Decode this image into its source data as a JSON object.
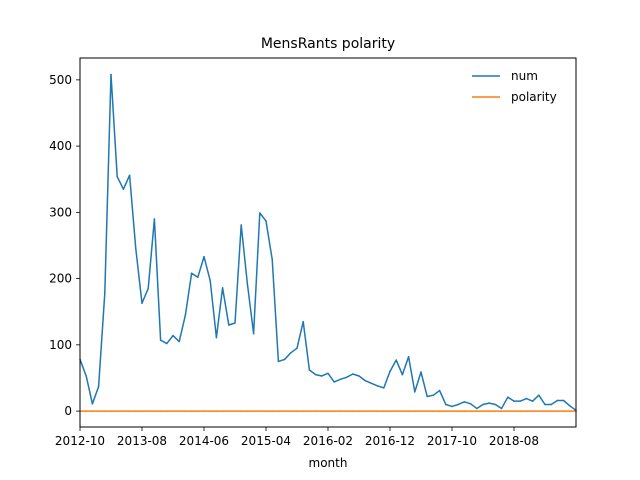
{
  "chart_data": {
    "type": "line",
    "title": "MensRants polarity",
    "xlabel": "month",
    "ylabel": "",
    "x_tick_labels": [
      "2012-10",
      "2013-08",
      "2014-06",
      "2015-04",
      "2016-02",
      "2016-12",
      "2017-10",
      "2018-08"
    ],
    "y_ticks": [
      0,
      100,
      200,
      300,
      400,
      500
    ],
    "ylim": [
      -24,
      533
    ],
    "legend_position": "top-right",
    "grid": false,
    "x_start": "2012-10",
    "series": [
      {
        "name": "num",
        "color": "#1f77b4",
        "values": [
          78,
          53,
          11,
          37,
          178,
          508,
          354,
          335,
          356,
          245,
          163,
          185,
          290,
          107,
          102,
          114,
          105,
          145,
          208,
          202,
          233,
          197,
          111,
          186,
          130,
          133,
          281,
          192,
          117,
          299,
          287,
          229,
          75,
          78,
          88,
          95,
          135,
          62,
          55,
          53,
          57,
          44,
          48,
          51,
          56,
          53,
          46,
          42,
          38,
          35,
          60,
          77,
          55,
          82,
          29,
          59,
          22,
          24,
          31,
          10,
          7,
          10,
          14,
          11,
          4,
          10,
          12,
          10,
          4,
          21,
          15,
          15,
          19,
          15,
          24,
          10,
          10,
          16,
          16,
          8,
          1
        ]
      },
      {
        "name": "polarity",
        "color": "#ff7f0e",
        "values": [
          0,
          0,
          0,
          0,
          0,
          0,
          0,
          0,
          0,
          0,
          0,
          0,
          0,
          0,
          0,
          0,
          0,
          0,
          0,
          0,
          0,
          0,
          0,
          0,
          0,
          0,
          0,
          0,
          0,
          0,
          0,
          0,
          0,
          0,
          0,
          0,
          0,
          0,
          0,
          0,
          0,
          0,
          0,
          0,
          0,
          0,
          0,
          0,
          0,
          0,
          0,
          0,
          0,
          0,
          0,
          0,
          0,
          0,
          0,
          0,
          0,
          0,
          0,
          0,
          0,
          0,
          0,
          0,
          0,
          0,
          0,
          0,
          0,
          0,
          0,
          0,
          0,
          0,
          0,
          0,
          0
        ]
      }
    ]
  }
}
